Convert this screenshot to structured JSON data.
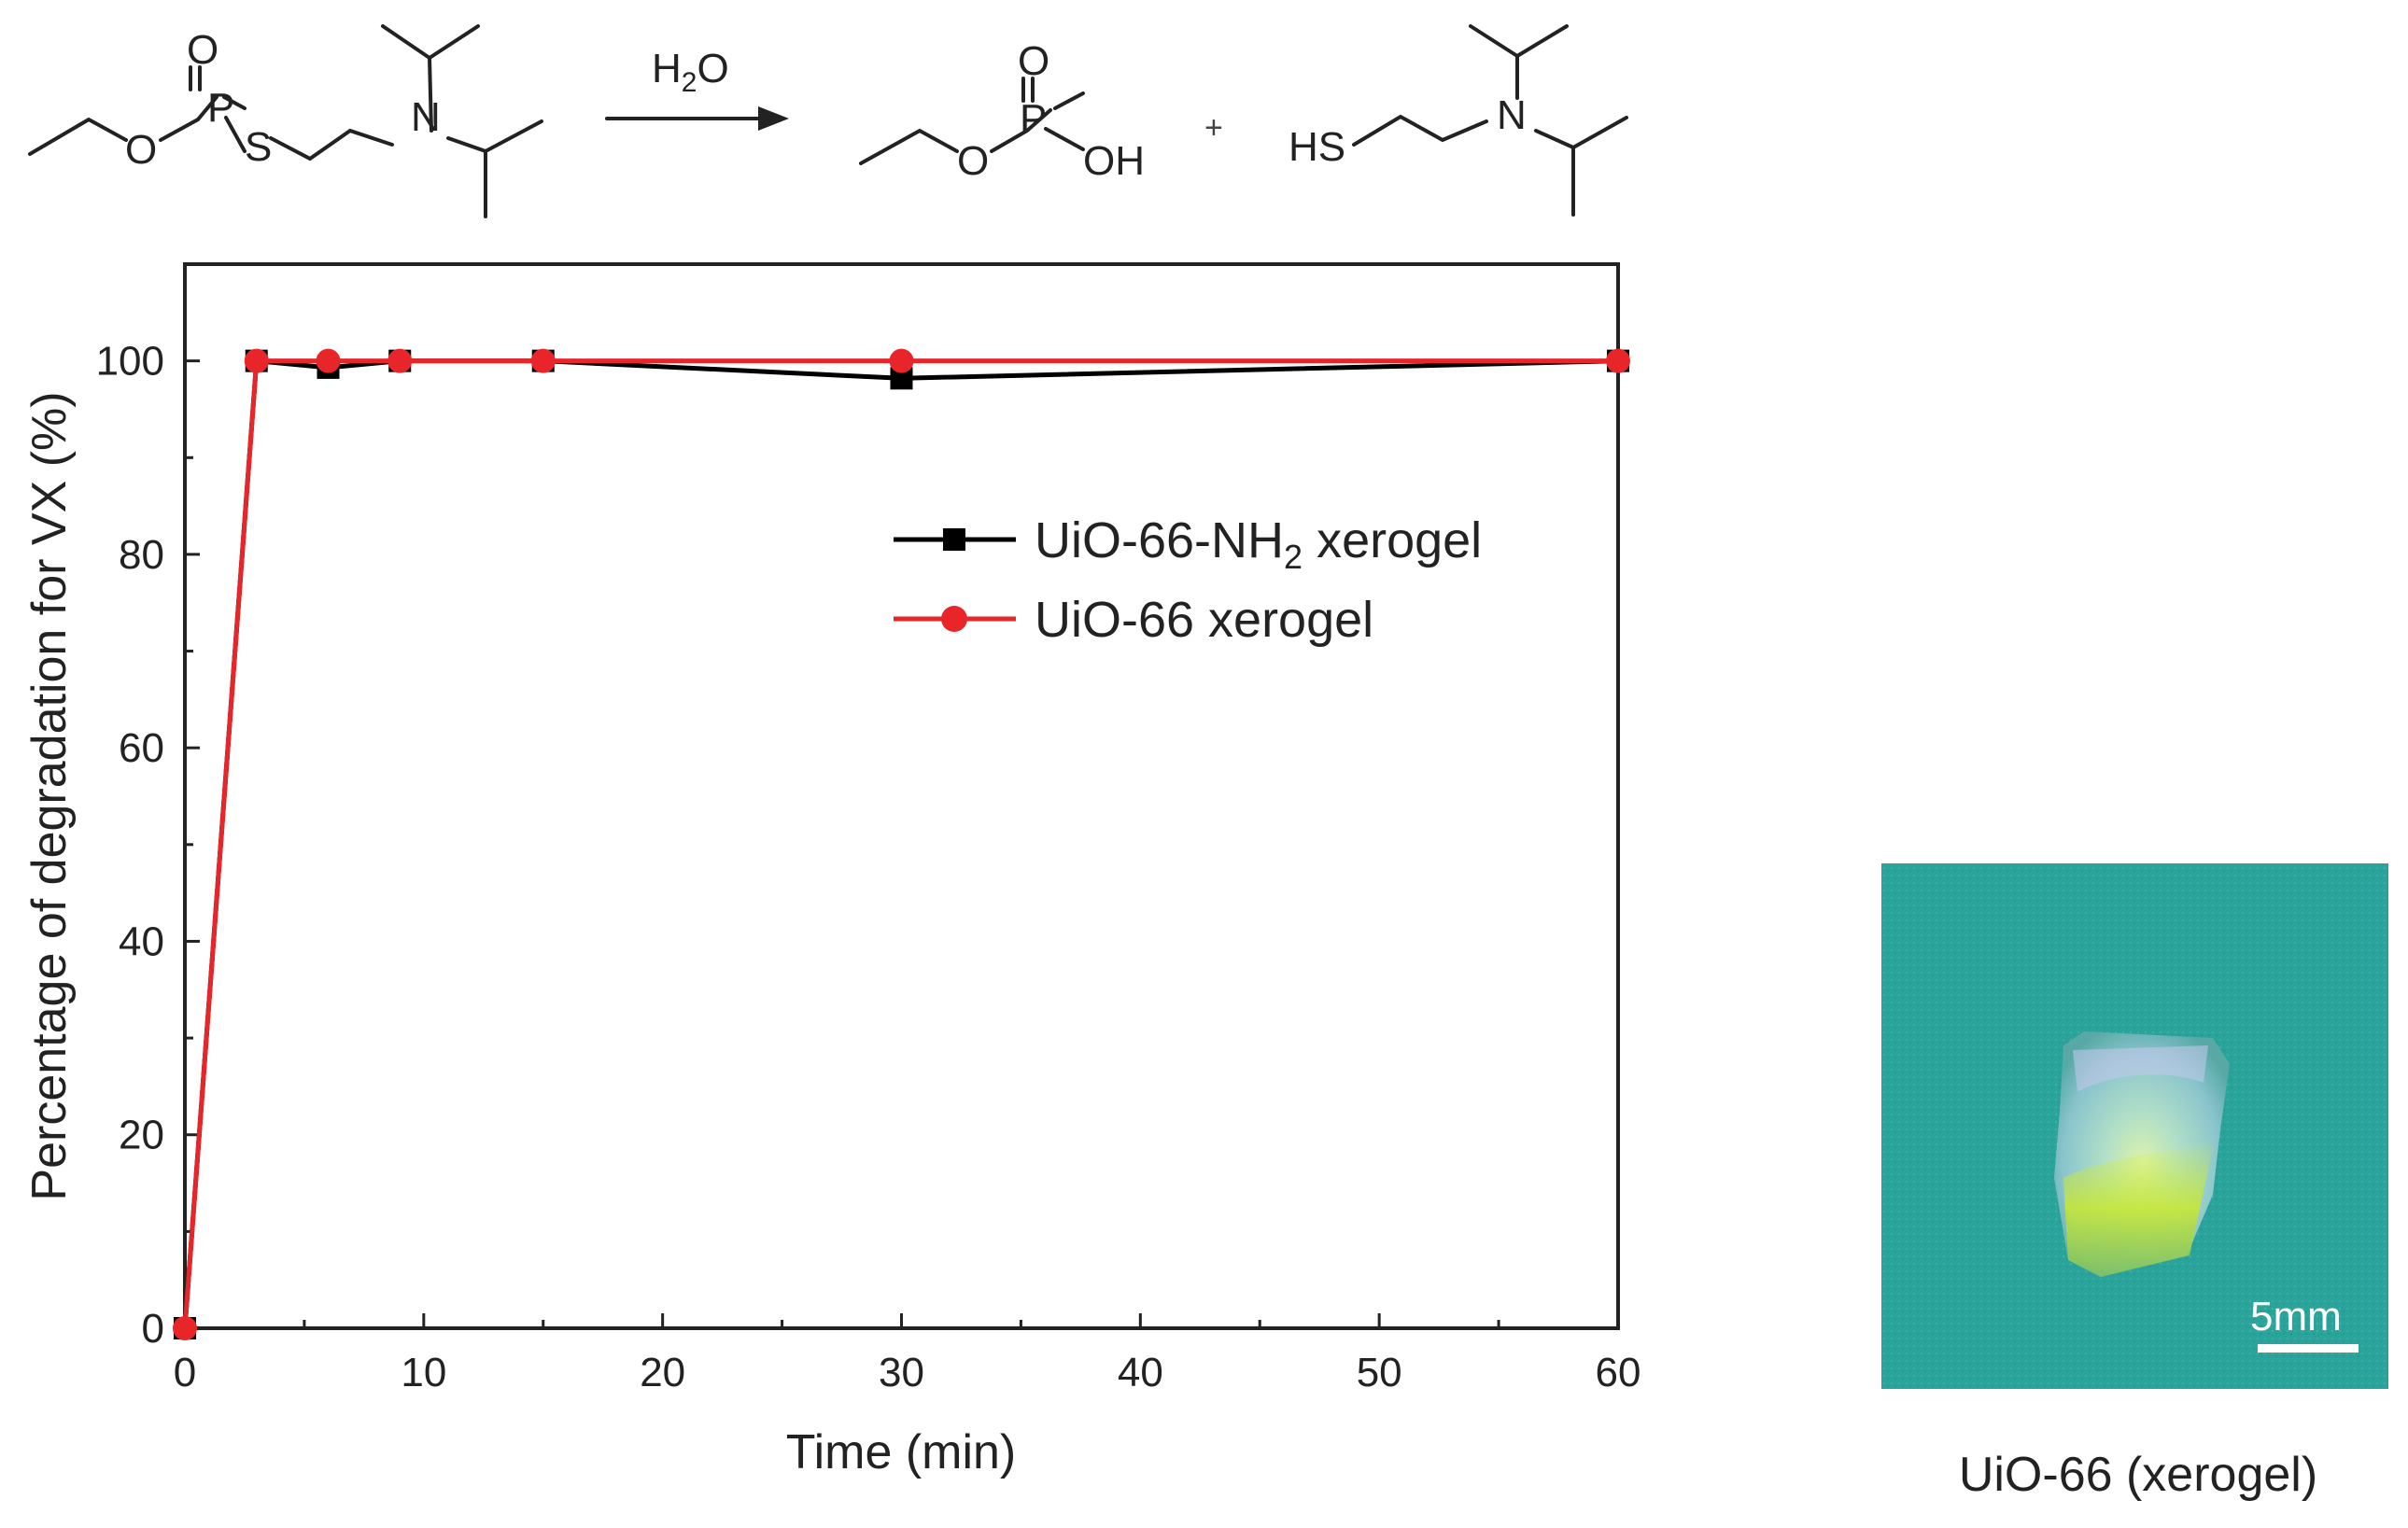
{
  "reaction": {
    "reagent": "H",
    "reagent_sub": "2",
    "reagent_tail": "O",
    "plus": "+",
    "labels": {
      "oxygen": "O",
      "phosphorus": "P",
      "sulfur": "S",
      "nitrogen": "N",
      "hydroxyl": "OH",
      "thiol": "HS"
    }
  },
  "chart_data": {
    "type": "line",
    "xlabel": "Time (min)",
    "ylabel": "Percentage of degradation for VX (%)",
    "xlim": [
      0,
      60
    ],
    "ylim": [
      0,
      110
    ],
    "xticks": [
      0,
      10,
      20,
      30,
      40,
      50,
      60
    ],
    "yticks": [
      0,
      20,
      40,
      60,
      80,
      100
    ],
    "grid": false,
    "legend_position": "center-right",
    "series": [
      {
        "name_prefix": "UiO-66-NH",
        "name_sub": "2",
        "name_suffix": " xerogel",
        "color": "#000000",
        "marker": "square",
        "x": [
          0,
          3,
          6,
          9,
          15,
          30,
          60
        ],
        "y": [
          0,
          100,
          99.3,
          100,
          100,
          98.2,
          100
        ]
      },
      {
        "name": "UiO-66 xerogel",
        "color": "#e8262a",
        "marker": "circle",
        "x": [
          0,
          3,
          6,
          9,
          15,
          30,
          60
        ],
        "y": [
          0,
          100,
          100,
          100,
          100,
          100,
          100
        ]
      }
    ]
  },
  "photo": {
    "scale_label": "5mm",
    "caption": "UiO-66 (xerogel)",
    "background_color": "#2aa39a"
  }
}
